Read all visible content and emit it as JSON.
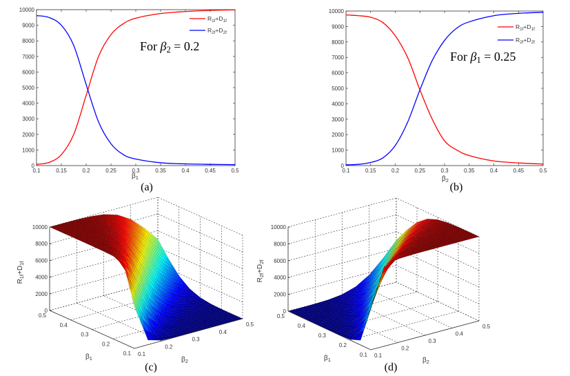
{
  "chart_data": [
    {
      "type": "line",
      "caption": "(a)",
      "xlabel": {
        "base": "β",
        "sub": "1"
      },
      "ylabel": "",
      "xlim": [
        0.1,
        0.5
      ],
      "ylim": [
        0,
        10000
      ],
      "xticks": [
        "0.1",
        "0.15",
        "0.2",
        "0.25",
        "0.3",
        "0.35",
        "0.4",
        "0.45",
        "0.5"
      ],
      "yticks": [
        "0",
        "1000",
        "2000",
        "3000",
        "4000",
        "5000",
        "6000",
        "7000",
        "8000",
        "9000",
        "10000"
      ],
      "grid": false,
      "legend_placement": "top-right",
      "annotation": [
        {
          "t": "For "
        },
        {
          "t": "β",
          "it": true
        },
        {
          "t": "2",
          "sub": true
        },
        {
          "t": " = 0.2"
        }
      ],
      "x": [
        0.1,
        0.125,
        0.15,
        0.175,
        0.2,
        0.225,
        0.25,
        0.275,
        0.3,
        0.35,
        0.4,
        0.45,
        0.5
      ],
      "series": [
        {
          "name_parts": [
            {
              "t": "R"
            },
            {
              "t": "1f",
              "sub": true
            },
            {
              "t": "+D"
            },
            {
              "t": "1f",
              "sub": true
            }
          ],
          "color": "#ff0000",
          "values": [
            80,
            200,
            700,
            2000,
            4500,
            7000,
            8400,
            9100,
            9450,
            9750,
            9880,
            9950,
            9990
          ]
        },
        {
          "name_parts": [
            {
              "t": "R"
            },
            {
              "t": "2f",
              "sub": true
            },
            {
              "t": "+D"
            },
            {
              "t": "2f",
              "sub": true
            }
          ],
          "color": "#0000ff",
          "values": [
            9620,
            9500,
            9000,
            7700,
            5200,
            2800,
            1400,
            700,
            420,
            180,
            110,
            80,
            60
          ]
        }
      ]
    },
    {
      "type": "line",
      "caption": "(b)",
      "xlabel": {
        "base": "β",
        "sub": "2"
      },
      "ylabel": "",
      "xlim": [
        0.1,
        0.5
      ],
      "ylim": [
        0,
        10000
      ],
      "xticks": [
        "0.1",
        "0.15",
        "0.2",
        "0.25",
        "0.3",
        "0.35",
        "0.4",
        "0.45",
        "0.5"
      ],
      "yticks": [
        "0",
        "1000",
        "2000",
        "3000",
        "4000",
        "5000",
        "6000",
        "7000",
        "8000",
        "9000",
        "10000"
      ],
      "grid": false,
      "legend_placement": "top-right",
      "annotation": [
        {
          "t": "For "
        },
        {
          "t": "β",
          "it": true
        },
        {
          "t": "1",
          "sub": true
        },
        {
          "t": " = 0.25"
        }
      ],
      "x": [
        0.1,
        0.125,
        0.15,
        0.175,
        0.2,
        0.225,
        0.25,
        0.275,
        0.3,
        0.325,
        0.35,
        0.4,
        0.45,
        0.5
      ],
      "series": [
        {
          "name_parts": [
            {
              "t": "R"
            },
            {
              "t": "1f",
              "sub": true
            },
            {
              "t": "+D"
            },
            {
              "t": "1f",
              "sub": true
            }
          ],
          "color": "#ff0000",
          "values": [
            9750,
            9700,
            9600,
            9250,
            8400,
            7000,
            4900,
            3000,
            1600,
            1000,
            650,
            300,
            170,
            100
          ]
        },
        {
          "name_parts": [
            {
              "t": "R"
            },
            {
              "t": "2f",
              "sub": true
            },
            {
              "t": "+D"
            },
            {
              "t": "2f",
              "sub": true
            }
          ],
          "color": "#0000ff",
          "values": [
            50,
            80,
            200,
            500,
            1300,
            2800,
            4900,
            6800,
            8100,
            8900,
            9300,
            9700,
            9850,
            9920
          ]
        }
      ]
    },
    {
      "type": "surface",
      "caption": "(c)",
      "xlabel": {
        "base": "β",
        "sub": "1"
      },
      "ylabel": {
        "base": "β",
        "sub": "2"
      },
      "zlabel": [
        {
          "t": "R"
        },
        {
          "t": "1f",
          "sub": true
        },
        {
          "t": "+D"
        },
        {
          "t": "1f",
          "sub": true
        }
      ],
      "zlim": [
        0,
        10000
      ],
      "colormap": "jet",
      "b1_ticks": [
        "0.1",
        "0.2",
        "0.3",
        "0.4",
        "0.5"
      ],
      "b2_ticks": [
        "0.1",
        "0.2",
        "0.3",
        "0.4",
        "0.5"
      ],
      "z_ticks": [
        "0",
        "2000",
        "4000",
        "6000",
        "8000",
        "10000"
      ],
      "grid": true,
      "b1": [
        0.1,
        0.15,
        0.2,
        0.25,
        0.3,
        0.35,
        0.4,
        0.45,
        0.5
      ],
      "b2": [
        0.1,
        0.15,
        0.2,
        0.25,
        0.3,
        0.35,
        0.4,
        0.45,
        0.5
      ],
      "z": [
        [
          5000,
          553,
          78,
          16,
          5,
          2,
          1,
          0,
          0
        ],
        [
          9447,
          5000,
          1178,
          272,
          78,
          27,
          10,
          5,
          2
        ],
        [
          9922,
          8822,
          5000,
          1734,
          553,
          195,
          78,
          34,
          16
        ],
        [
          9984,
          9728,
          8266,
          5000,
          2182,
          867,
          359,
          161,
          78
        ],
        [
          9995,
          9922,
          9447,
          7819,
          5000,
          2537,
          1178,
          553,
          272
        ],
        [
          9998,
          9973,
          9805,
          9133,
          7464,
          5000,
          2819,
          1469,
          761
        ],
        [
          9999,
          9990,
          9922,
          9641,
          8822,
          7180,
          5000,
          3048,
          1734
        ],
        [
          10000,
          9995,
          9966,
          9839,
          9447,
          8531,
          6952,
          5000,
          3235
        ],
        [
          10000,
          9998,
          9984,
          9922,
          9728,
          9239,
          8266,
          6765,
          5000
        ]
      ]
    },
    {
      "type": "surface",
      "caption": "(d)",
      "xlabel": {
        "base": "β",
        "sub": "1"
      },
      "ylabel": {
        "base": "β",
        "sub": "2"
      },
      "zlabel": [
        {
          "t": "R"
        },
        {
          "t": "2f",
          "sub": true
        },
        {
          "t": "+D"
        },
        {
          "t": "2f",
          "sub": true
        }
      ],
      "zlim": [
        0,
        10000
      ],
      "colormap": "jet",
      "b1_ticks": [
        "0.1",
        "0.2",
        "0.3",
        "0.4",
        "0.5"
      ],
      "b2_ticks": [
        "0.1",
        "0.2",
        "0.3",
        "0.4",
        "0.5"
      ],
      "z_ticks": [
        "0",
        "2000",
        "4000",
        "6000",
        "8000",
        "10000"
      ],
      "grid": true,
      "b1": [
        0.1,
        0.15,
        0.2,
        0.25,
        0.3,
        0.35,
        0.4,
        0.45,
        0.5
      ],
      "b2": [
        0.1,
        0.15,
        0.2,
        0.25,
        0.3,
        0.35,
        0.4,
        0.45,
        0.5
      ],
      "z": [
        [
          5000,
          9447,
          9922,
          9984,
          9995,
          9998,
          9999,
          10000,
          10000
        ],
        [
          553,
          5000,
          8822,
          9728,
          9922,
          9973,
          9990,
          9995,
          9998
        ],
        [
          78,
          1178,
          5000,
          8266,
          9447,
          9805,
          9922,
          9966,
          9984
        ],
        [
          16,
          272,
          1734,
          5000,
          7819,
          9133,
          9641,
          9839,
          9922
        ],
        [
          5,
          78,
          553,
          2182,
          5000,
          7464,
          8822,
          9447,
          9728
        ],
        [
          2,
          27,
          195,
          867,
          2537,
          5000,
          7180,
          8531,
          9239
        ],
        [
          1,
          10,
          78,
          359,
          1178,
          2819,
          5000,
          6952,
          8266
        ],
        [
          0,
          5,
          34,
          161,
          553,
          1469,
          3048,
          5000,
          6765
        ],
        [
          0,
          2,
          16,
          78,
          272,
          761,
          1734,
          3235,
          5000
        ]
      ]
    }
  ]
}
